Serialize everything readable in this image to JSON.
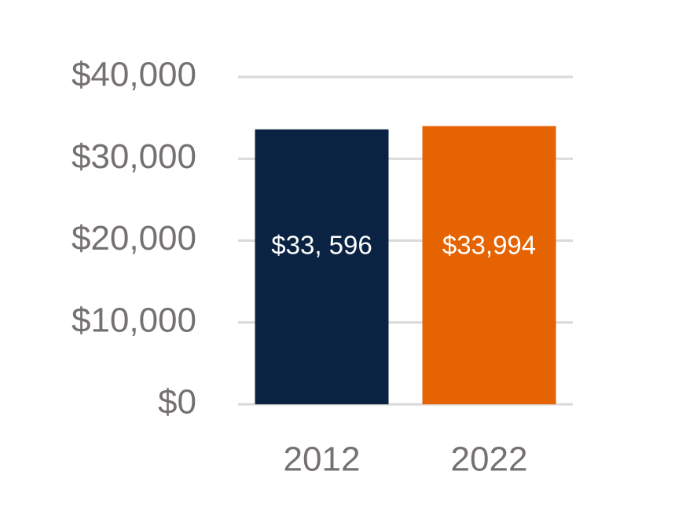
{
  "chart_data": {
    "type": "bar",
    "categories": [
      "2012",
      "2022"
    ],
    "values": [
      33596,
      33994
    ],
    "data_labels": [
      "$33, 596",
      "$33,994"
    ],
    "colors": [
      "#0b2343",
      "#e56300"
    ],
    "ylim": [
      0,
      40000
    ],
    "yticks": [
      0,
      10000,
      20000,
      30000,
      40000
    ],
    "ytick_labels": [
      "$0",
      "$10,000",
      "$20,000",
      "$30,000",
      "$40,000"
    ],
    "grid": true,
    "legend": "none",
    "title": "",
    "xlabel": "",
    "ylabel": ""
  }
}
